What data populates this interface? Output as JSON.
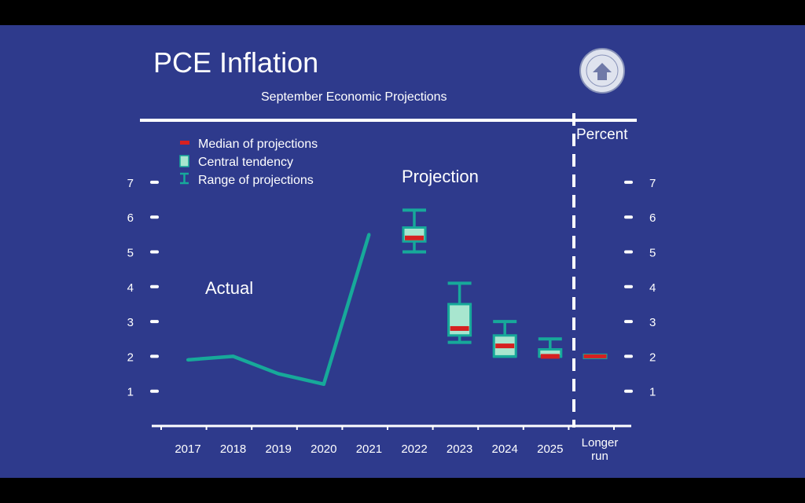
{
  "slide": {
    "title": "PCE Inflation",
    "subtitle": "September Economic Projections",
    "percent_label": "Percent",
    "actual_label": "Actual",
    "projection_label": "Projection",
    "seal_icon": "federal-reserve-seal-icon"
  },
  "colors": {
    "background": "#2e3a8c",
    "line": "#17a99a",
    "box_fill": "#a8e6cf",
    "box_border": "#17a99a",
    "median": "#d62020",
    "text": "#ffffff"
  },
  "chart_data": {
    "type": "line+boxplot",
    "title": "PCE Inflation",
    "subtitle": "September Economic Projections",
    "ylabel": "Percent",
    "ylim": [
      0,
      7.5
    ],
    "yticks": [
      "1",
      "2",
      "3",
      "4",
      "5",
      "6",
      "7"
    ],
    "categories": [
      "2017",
      "2018",
      "2019",
      "2020",
      "2021",
      "2022",
      "2023",
      "2024",
      "2025",
      "Longer run"
    ],
    "legend": {
      "placement": "top-left",
      "entries": [
        "Median of projections",
        "Central tendency",
        "Range of projections"
      ]
    },
    "actual": {
      "x": [
        "2017",
        "2018",
        "2019",
        "2020",
        "2021"
      ],
      "values": [
        1.9,
        2.0,
        1.5,
        1.2,
        5.5
      ]
    },
    "projections": [
      {
        "year": "2022",
        "range": [
          5.0,
          6.2
        ],
        "central": [
          5.3,
          5.7
        ],
        "median": 5.4
      },
      {
        "year": "2023",
        "range": [
          2.4,
          4.1
        ],
        "central": [
          2.6,
          3.5
        ],
        "median": 2.8
      },
      {
        "year": "2024",
        "range": [
          2.0,
          3.0
        ],
        "central": [
          2.0,
          2.6
        ],
        "median": 2.3
      },
      {
        "year": "2025",
        "range": [
          2.0,
          2.5
        ],
        "central": [
          2.0,
          2.2
        ],
        "median": 2.0
      },
      {
        "year": "Longer run",
        "range": [
          2.0,
          2.0
        ],
        "central": [
          2.0,
          2.0
        ],
        "median": 2.0
      }
    ]
  }
}
